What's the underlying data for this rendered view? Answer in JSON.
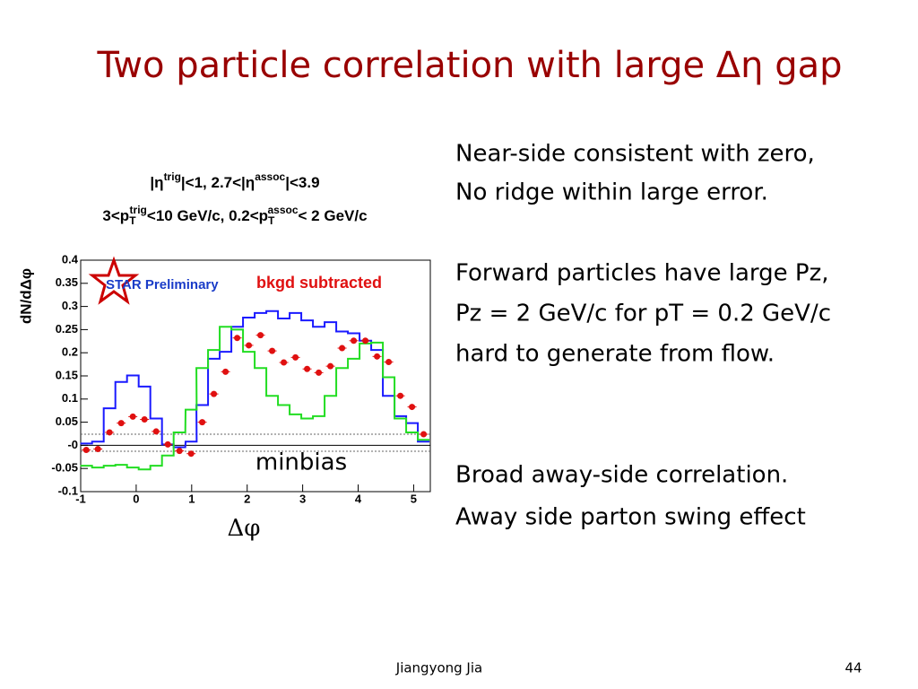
{
  "title": "Two particle correlation with large Δη gap",
  "cuts": [
    [
      "|η",
      "trig",
      "|<1, 2.7<|η",
      "assoc",
      "|<3.9"
    ],
    [
      "3<p",
      "T",
      "trig",
      "<10 GeV/c, 0.2<p",
      "T",
      "assoc",
      "< 2 GeV/c"
    ]
  ],
  "notes": [
    "Near-side consistent with zero,",
    "No ridge within large error.",
    "Forward particles have large Pz,",
    "Pz = 2 GeV/c for pT = 0.2 GeV/c",
    "hard to generate from flow.",
    "Broad away-side correlation.",
    "Away side parton swing effect"
  ],
  "footer": {
    "author": "Jiangyong Jia",
    "page": "44"
  },
  "chart_data": {
    "type": "line",
    "x_label": "Δφ",
    "y_label": "dN/dΔφ",
    "annotations": [
      "STAR Preliminary",
      "bkgd subtracted",
      "minbias"
    ],
    "x": [
      -0.9,
      -0.69,
      -0.48,
      -0.27,
      -0.06,
      0.15,
      0.36,
      0.57,
      0.78,
      0.99,
      1.19,
      1.4,
      1.61,
      1.82,
      2.03,
      2.24,
      2.45,
      2.66,
      2.87,
      3.08,
      3.29,
      3.5,
      3.71,
      3.92,
      4.13,
      4.34,
      4.55,
      4.76,
      4.97,
      5.18
    ],
    "series": [
      {
        "style": "step",
        "color": "#1a1aff",
        "values": [
          0.004,
          0.008,
          0.08,
          0.137,
          0.151,
          0.127,
          0.058,
          0.002,
          -0.004,
          0.008,
          0.087,
          0.187,
          0.202,
          0.256,
          0.276,
          0.286,
          0.29,
          0.274,
          0.286,
          0.27,
          0.256,
          0.266,
          0.246,
          0.242,
          0.226,
          0.206,
          0.107,
          0.063,
          0.048,
          0.008
        ]
      },
      {
        "style": "step",
        "color": "#22dd22",
        "values": [
          -0.044,
          -0.048,
          -0.044,
          -0.042,
          -0.048,
          -0.052,
          -0.044,
          -0.022,
          0.028,
          0.077,
          0.167,
          0.206,
          0.256,
          0.25,
          0.202,
          0.167,
          0.107,
          0.087,
          0.067,
          0.058,
          0.063,
          0.107,
          0.167,
          0.187,
          0.22,
          0.222,
          0.147,
          0.058,
          0.028,
          0.012
        ]
      },
      {
        "style": "points",
        "color": "#e01010",
        "values": [
          -0.01,
          -0.008,
          0.028,
          0.048,
          0.062,
          0.056,
          0.03,
          0.002,
          -0.012,
          -0.018,
          0.05,
          0.111,
          0.159,
          0.232,
          0.216,
          0.238,
          0.204,
          0.179,
          0.19,
          0.165,
          0.157,
          0.171,
          0.21,
          0.226,
          0.226,
          0.192,
          0.18,
          0.107,
          0.083,
          0.024
        ]
      }
    ],
    "xlim": [
      -1,
      5.3
    ],
    "xticks": [
      -1,
      0,
      1,
      2,
      3,
      4,
      5
    ],
    "ylim": [
      -0.1,
      0.4
    ],
    "yticks": [
      -0.1,
      -0.05,
      {
        "value": 0,
        "label": "-0"
      },
      0.05,
      0.1,
      0.15,
      0.2,
      0.25,
      0.3,
      0.35,
      0.4
    ]
  }
}
